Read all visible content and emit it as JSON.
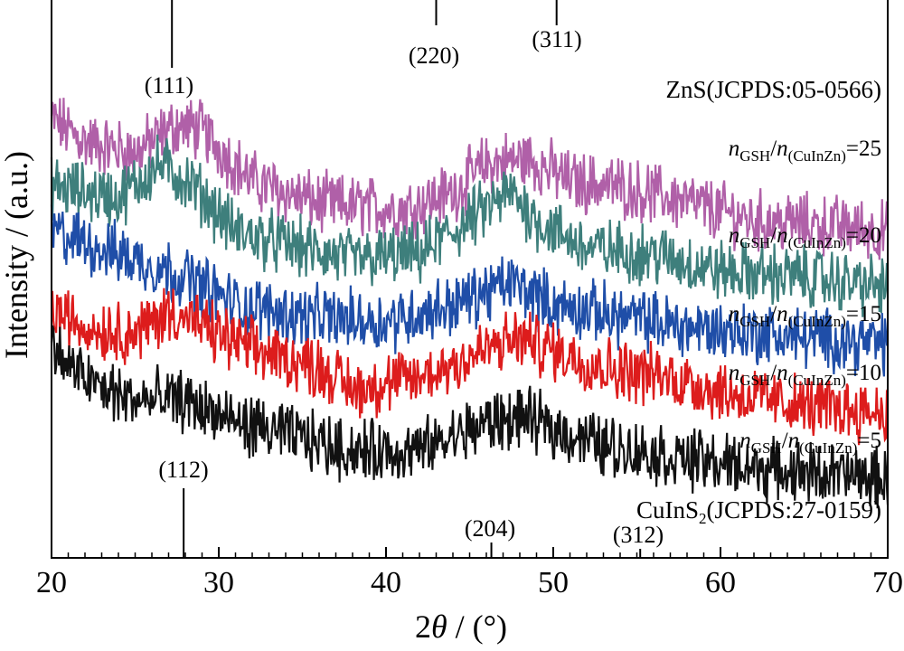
{
  "chart_data": {
    "type": "line",
    "xlabel_prefix": "2",
    "xlabel_symbol": "θ",
    "xlabel_suffix": " / (°)",
    "ylabel": "Intensity / (a.u.)",
    "xlim": [
      20,
      70
    ],
    "ylim": [
      0,
      100
    ],
    "x_ticks": [
      20,
      30,
      40,
      50,
      60,
      70
    ],
    "y_ticks_shown": false,
    "grid": false,
    "reference_top": {
      "label": "ZnS(JCPDS:05-0566)",
      "peaks": [
        {
          "x": 27.2,
          "label": "(111)"
        },
        {
          "x": 43.0,
          "label": "(220)"
        },
        {
          "x": 50.2,
          "label": "(311)"
        }
      ]
    },
    "reference_bottom": {
      "label_main": "CuInS",
      "label_sub": "2",
      "label_rest": "(JCPDS:27-0159)",
      "peaks": [
        {
          "x": 27.9,
          "label": "(112)"
        },
        {
          "x": 46.3,
          "label": "(204)"
        },
        {
          "x": 55.2,
          "label": "(312)"
        }
      ]
    },
    "series_label_parts": {
      "n": "n",
      "sub1": "GSH",
      "slash": "/",
      "sub2": "(CuInZn)",
      "eq": "="
    },
    "series": [
      {
        "value": "25",
        "color": "#b060a8",
        "points": [
          [
            20,
            78
          ],
          [
            22,
            74
          ],
          [
            25,
            72
          ],
          [
            27.5,
            77
          ],
          [
            29,
            76
          ],
          [
            32,
            67
          ],
          [
            36,
            63
          ],
          [
            41,
            62
          ],
          [
            44,
            65
          ],
          [
            46,
            70
          ],
          [
            48.5,
            71
          ],
          [
            51,
            67
          ],
          [
            54,
            66
          ],
          [
            57,
            64
          ],
          [
            62,
            60
          ],
          [
            67,
            59
          ],
          [
            70,
            58
          ]
        ]
      },
      {
        "value": "20",
        "color": "#3e7f7c",
        "points": [
          [
            20,
            66
          ],
          [
            22,
            65
          ],
          [
            24,
            64
          ],
          [
            26.5,
            70
          ],
          [
            28.5,
            66
          ],
          [
            31,
            58
          ],
          [
            35,
            55
          ],
          [
            38,
            53
          ],
          [
            42,
            54
          ],
          [
            44,
            58
          ],
          [
            47.5,
            65
          ],
          [
            49,
            60
          ],
          [
            52,
            55
          ],
          [
            56,
            54
          ],
          [
            60,
            51
          ],
          [
            65,
            50
          ],
          [
            70,
            48
          ]
        ]
      },
      {
        "value": "15",
        "color": "#1f4ea8",
        "points": [
          [
            20,
            58
          ],
          [
            21,
            57
          ],
          [
            23,
            55
          ],
          [
            25,
            53
          ],
          [
            28,
            50
          ],
          [
            31,
            45
          ],
          [
            35,
            43
          ],
          [
            40,
            42
          ],
          [
            44,
            45
          ],
          [
            47.5,
            49
          ],
          [
            50,
            45
          ],
          [
            54,
            43
          ],
          [
            58,
            41
          ],
          [
            62,
            40
          ],
          [
            66,
            39
          ],
          [
            70,
            38
          ]
        ]
      },
      {
        "value": "10",
        "color": "#dd1c1c",
        "points": [
          [
            20,
            44
          ],
          [
            22,
            41
          ],
          [
            25,
            40
          ],
          [
            27.2,
            44
          ],
          [
            29,
            41
          ],
          [
            32,
            37
          ],
          [
            36,
            34
          ],
          [
            38,
            30
          ],
          [
            42,
            32
          ],
          [
            46,
            37
          ],
          [
            48,
            39
          ],
          [
            50,
            37
          ],
          [
            53,
            34
          ],
          [
            57,
            32
          ],
          [
            61,
            29
          ],
          [
            65,
            27
          ],
          [
            70,
            26
          ]
        ]
      },
      {
        "value": "5",
        "color": "#111111",
        "points": [
          [
            20,
            38
          ],
          [
            21,
            34
          ],
          [
            23,
            30
          ],
          [
            25,
            28
          ],
          [
            28,
            28
          ],
          [
            31,
            24
          ],
          [
            34,
            22
          ],
          [
            38,
            19
          ],
          [
            42,
            19
          ],
          [
            46,
            24
          ],
          [
            48,
            25
          ],
          [
            50,
            23
          ],
          [
            53,
            20
          ],
          [
            57,
            18
          ],
          [
            62,
            16
          ],
          [
            66,
            15
          ],
          [
            70,
            14
          ]
        ]
      }
    ]
  }
}
